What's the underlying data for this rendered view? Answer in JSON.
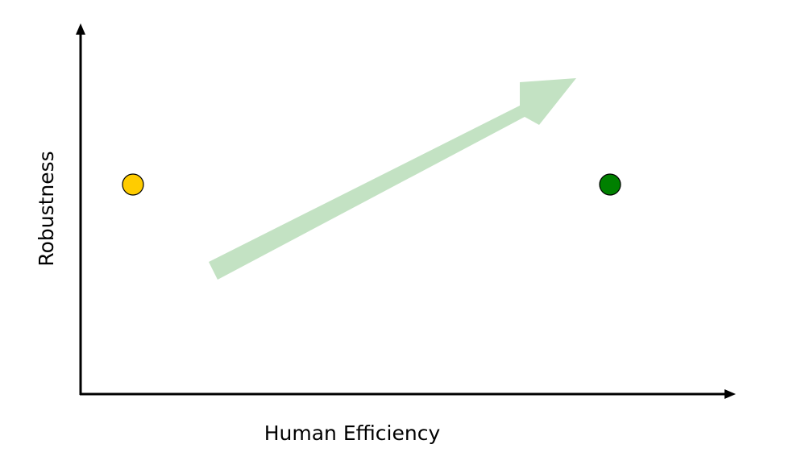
{
  "axes": {
    "x_label": "Human Efficiency",
    "y_label": "Robustness"
  },
  "points": [
    {
      "name": "yellow-point",
      "color": "#ffcc00"
    },
    {
      "name": "green-point",
      "color": "#008000"
    }
  ],
  "trend_arrow": {
    "color": "#c3e2c3",
    "direction": "up-right"
  },
  "colors": {
    "axis": "#000000",
    "point_stroke": "#000000"
  }
}
